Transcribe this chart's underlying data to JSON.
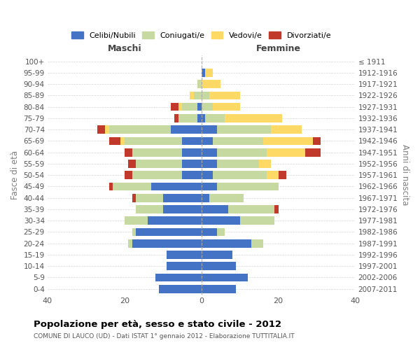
{
  "age_groups": [
    "100+",
    "95-99",
    "90-94",
    "85-89",
    "80-84",
    "75-79",
    "70-74",
    "65-69",
    "60-64",
    "55-59",
    "50-54",
    "45-49",
    "40-44",
    "35-39",
    "30-34",
    "25-29",
    "20-24",
    "15-19",
    "10-14",
    "5-9",
    "0-4"
  ],
  "birth_years": [
    "≤ 1911",
    "1912-1916",
    "1917-1921",
    "1922-1926",
    "1927-1931",
    "1932-1936",
    "1937-1941",
    "1942-1946",
    "1947-1951",
    "1952-1956",
    "1957-1961",
    "1962-1966",
    "1967-1971",
    "1972-1976",
    "1977-1981",
    "1982-1986",
    "1987-1991",
    "1992-1996",
    "1997-2001",
    "2002-2006",
    "2007-2011"
  ],
  "maschi": {
    "celibi": [
      0,
      0,
      0,
      0,
      1,
      1,
      8,
      5,
      5,
      5,
      5,
      13,
      10,
      10,
      14,
      17,
      18,
      9,
      9,
      12,
      11
    ],
    "coniugati": [
      0,
      0,
      1,
      2,
      4,
      5,
      16,
      15,
      13,
      12,
      13,
      10,
      7,
      7,
      6,
      1,
      1,
      0,
      0,
      0,
      0
    ],
    "vedovi": [
      0,
      0,
      0,
      1,
      1,
      0,
      1,
      1,
      0,
      0,
      0,
      0,
      0,
      0,
      0,
      0,
      0,
      0,
      0,
      0,
      0
    ],
    "divorziati": [
      0,
      0,
      0,
      0,
      2,
      1,
      2,
      3,
      2,
      2,
      2,
      1,
      1,
      0,
      0,
      0,
      0,
      0,
      0,
      0,
      0
    ]
  },
  "femmine": {
    "nubili": [
      0,
      1,
      0,
      0,
      0,
      1,
      4,
      3,
      4,
      4,
      3,
      4,
      2,
      7,
      10,
      4,
      13,
      8,
      9,
      12,
      9
    ],
    "coniugate": [
      0,
      0,
      0,
      2,
      3,
      5,
      14,
      13,
      13,
      11,
      14,
      16,
      9,
      12,
      9,
      2,
      3,
      0,
      0,
      0,
      0
    ],
    "vedove": [
      0,
      2,
      5,
      8,
      7,
      15,
      8,
      13,
      10,
      3,
      3,
      0,
      0,
      0,
      0,
      0,
      0,
      0,
      0,
      0,
      0
    ],
    "divorziate": [
      0,
      0,
      0,
      0,
      0,
      0,
      0,
      2,
      4,
      0,
      2,
      0,
      0,
      1,
      0,
      0,
      0,
      0,
      0,
      0,
      0
    ]
  },
  "colors": {
    "celibi": "#4472c4",
    "coniugati": "#c5d9a0",
    "vedovi": "#ffd966",
    "divorziati": "#c0392b"
  },
  "xlim": 40,
  "title": "Popolazione per età, sesso e stato civile - 2012",
  "subtitle": "COMUNE DI LAUCO (UD) - Dati ISTAT 1° gennaio 2012 - Elaborazione TUTTITALIA.IT",
  "ylabel_left": "Fasce di età",
  "ylabel_right": "Anni di nascita",
  "legend_labels": [
    "Celibi/Nubili",
    "Coniugati/e",
    "Vedovi/e",
    "Divorziati/e"
  ],
  "header_maschi": "Maschi",
  "header_femmine": "Femmine",
  "bg_color": "#ffffff",
  "grid_color": "#cccccc"
}
